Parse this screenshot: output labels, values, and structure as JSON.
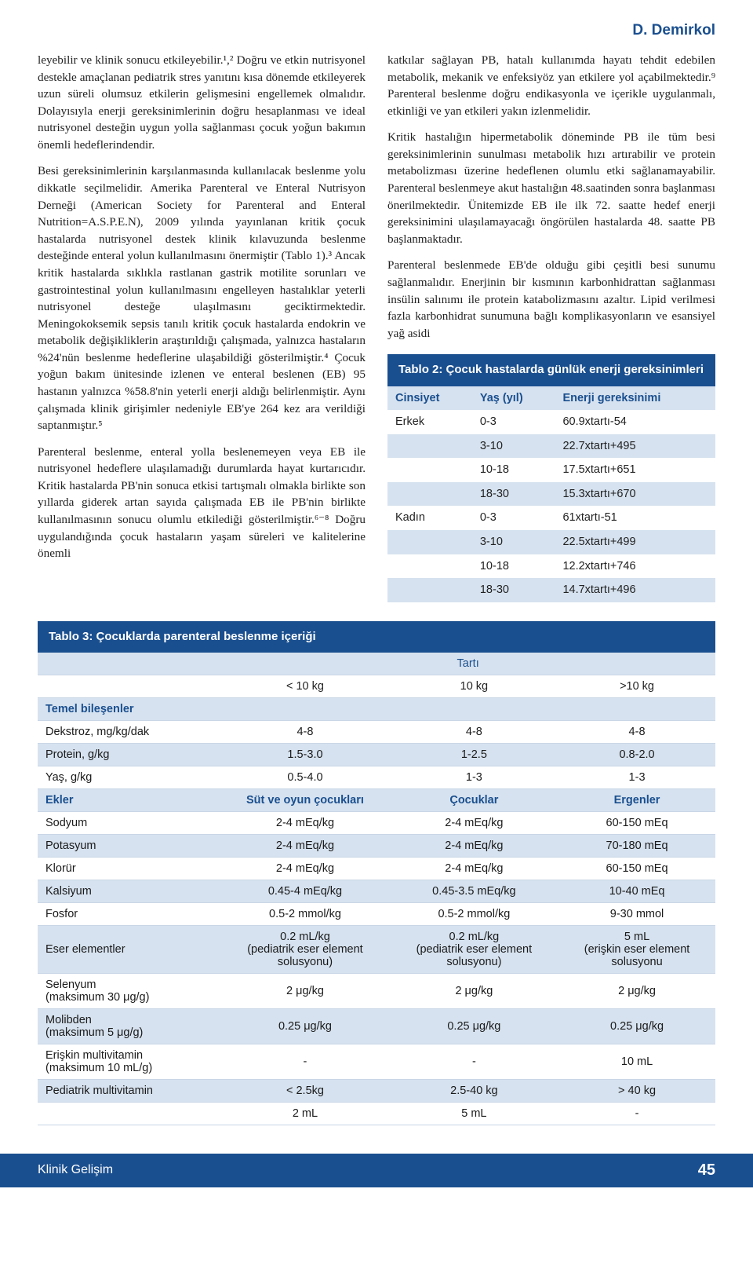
{
  "header": {
    "author": "D. Demirkol"
  },
  "leftcol": {
    "p1": "leyebilir ve klinik sonucu etkileyebilir.¹,² Doğru ve etkin nutrisyonel destekle amaçlanan pediatrik stres yanıtını kısa dönemde etkileyerek uzun süreli olumsuz etkilerin gelişmesini engellemek olmalıdır. Dolayısıyla enerji gereksinimlerinin doğru hesaplanması ve ideal nutrisyonel desteğin uygun yolla sağlanması çocuk yoğun bakımın önemli hedeflerindendir.",
    "p2": "Besi gereksinimlerinin karşılanmasında kullanılacak beslenme yolu dikkatle seçilmelidir. Amerika Parenteral ve Enteral Nutrisyon Derneği (American Society for Parenteral and Enteral Nutrition=A.S.P.E.N), 2009 yılında yayınlanan kritik çocuk hastalarda nutrisyonel destek klinik kılavuzunda beslenme desteğinde enteral yolun kullanılmasını önermiştir (Tablo 1).³ Ancak kritik hastalarda sıklıkla rastlanan gastrik motilite sorunları ve gastrointestinal yolun kullanılmasını engelleyen hastalıklar yeterli nutrisyonel desteğe ulaşılmasını geciktirmektedir. Meningokoksemik sepsis tanılı kritik çocuk hastalarda endokrin ve metabolik değişikliklerin araştırıldığı çalışmada, yalnızca hastaların %24'nün beslenme hedeflerine ulaşabildiği gösterilmiştir.⁴ Çocuk yoğun bakım ünitesinde izlenen ve enteral beslenen (EB) 95 hastanın yalnızca %58.8'nin yeterli enerji aldığı belirlenmiştir. Aynı çalışmada klinik girişimler nedeniyle EB'ye 264 kez ara verildiği saptanmıştır.⁵",
    "p3": "Parenteral beslenme, enteral yolla beslenemeyen veya EB ile nutrisyonel hedeflere ulaşılamadığı durumlarda hayat kurtarıcıdır. Kritik hastalarda PB'nin sonuca etkisi tartışmalı olmakla birlikte son yıllarda giderek artan sayıda çalışmada EB ile PB'nin birlikte kullanılmasının sonucu olumlu etkilediği gösterilmiştir.⁶⁻⁸ Doğru uygulandığında çocuk hastaların yaşam süreleri ve kalitelerine önemli"
  },
  "rightcol": {
    "p1": "katkılar sağlayan PB, hatalı kullanımda hayatı tehdit edebilen metabolik, mekanik ve enfeksiyöz yan etkilere yol açabilmektedir.⁹ Parenteral beslenme doğru endikasyonla ve içerikle uygulanmalı, etkinliği ve yan etkileri yakın izlenmelidir.",
    "p2": "Kritik hastalığın hipermetabolik döneminde PB ile tüm besi gereksinimlerinin sunulması metabolik hızı artırabilir ve protein metabolizması üzerine hedeflenen olumlu etki sağlanamayabilir. Parenteral beslenmeye akut hastalığın 48.saatinden sonra başlanması önerilmektedir. Ünitemizde EB ile ilk 72. saatte hedef enerji gereksinimini ulaşılamayacağı öngörülen hastalarda 48. saatte PB başlanmaktadır.",
    "p3": "Parenteral beslenmede EB'de olduğu gibi çeşitli besi sunumu sağlanmalıdır. Enerjinin bir kısmının karbonhidrattan sağlanması insülin salınımı ile protein katabolizmasını azaltır. Lipid verilmesi fazla karbonhidrat sunumuna bağlı komplikasyonların ve esansiyel yağ asidi"
  },
  "table2": {
    "title": "Tablo 2: Çocuk hastalarda günlük enerji gereksinimleri",
    "headers": [
      "Cinsiyet",
      "Yaş (yıl)",
      "Enerji gereksinimi"
    ],
    "rows": [
      [
        "Erkek",
        "0-3",
        "60.9xtartı-54"
      ],
      [
        "",
        "3-10",
        "22.7xtartı+495"
      ],
      [
        "",
        "10-18",
        "17.5xtartı+651"
      ],
      [
        "",
        "18-30",
        "15.3xtartı+670"
      ],
      [
        "Kadın",
        "0-3",
        "61xtartı-51"
      ],
      [
        "",
        "3-10",
        "22.5xtartı+499"
      ],
      [
        "",
        "10-18",
        "12.2xtartı+746"
      ],
      [
        "",
        "18-30",
        "14.7xtartı+496"
      ]
    ]
  },
  "table3": {
    "title": "Tablo 3: Çocuklarda parenteral beslenme içeriği",
    "tarti": "Tartı",
    "weights": [
      "",
      "< 10 kg",
      "10 kg",
      ">10 kg"
    ],
    "section1": "Temel bileşenler",
    "rows1": [
      [
        "Dekstroz, mg/kg/dak",
        "4-8",
        "4-8",
        "4-8"
      ],
      [
        "Protein, g/kg",
        "1.5-3.0",
        "1-2.5",
        "0.8-2.0"
      ],
      [
        "Yaş, g/kg",
        "0.5-4.0",
        "1-3",
        "1-3"
      ]
    ],
    "section2": [
      "Ekler",
      "Süt ve oyun çocukları",
      "Çocuklar",
      "Ergenler"
    ],
    "rows2": [
      [
        "Sodyum",
        "2-4 mEq/kg",
        "2-4 mEq/kg",
        "60-150 mEq"
      ],
      [
        "Potasyum",
        "2-4 mEq/kg",
        "2-4 mEq/kg",
        "70-180 mEq"
      ],
      [
        "Klorür",
        "2-4 mEq/kg",
        "2-4 mEq/kg",
        "60-150 mEq"
      ],
      [
        "Kalsiyum",
        "0.45-4 mEq/kg",
        "0.45-3.5 mEq/kg",
        "10-40 mEq"
      ],
      [
        "Fosfor",
        "0.5-2 mmol/kg",
        "0.5-2 mmol/kg",
        "9-30 mmol"
      ],
      [
        "Eser elementler",
        "0.2 mL/kg\n(pediatrik eser element solusyonu)",
        "0.2 mL/kg\n(pediatrik eser element solusyonu)",
        "5 mL\n(erişkin eser element solusyonu"
      ],
      [
        "Selenyum\n(maksimum 30 μg/g)",
        "2 μg/kg",
        "2 μg/kg",
        "2 μg/kg"
      ],
      [
        "Molibden\n(maksimum 5 μg/g)",
        "0.25 μg/kg",
        "0.25 μg/kg",
        "0.25 μg/kg"
      ],
      [
        "Erişkin multivitamin\n(maksimum 10 mL/g)",
        "-",
        "-",
        "10 mL"
      ],
      [
        "Pediatrik multivitamin",
        "< 2.5kg",
        "2.5-40 kg",
        "> 40 kg"
      ],
      [
        "",
        "2 mL",
        "5 mL",
        "-"
      ]
    ]
  },
  "footer": {
    "journal": "Klinik Gelişim",
    "page": "45"
  }
}
